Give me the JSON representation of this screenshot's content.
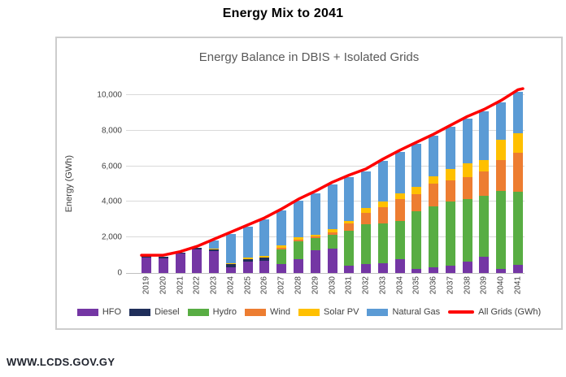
{
  "page": {
    "title": "Energy Mix to 2041",
    "footer": "WWW.LCDS.GOV.GY"
  },
  "chart_data": {
    "type": "bar",
    "subtype": "stacked-columns-with-line-overlay",
    "title": "Energy Balance in DBIS + Isolated Grids",
    "xlabel": "",
    "ylabel": "Energy (GWh)",
    "ylim": [
      0,
      10000
    ],
    "ytick_interval": 2000,
    "ytick_labels": [
      "0",
      "2,000",
      "4,000",
      "6,000",
      "8,000",
      "10,000"
    ],
    "grid": true,
    "legend_position": "bottom",
    "categories": [
      "2019",
      "2020",
      "2021",
      "2022",
      "2023",
      "2024",
      "2025",
      "2026",
      "2027",
      "2028",
      "2029",
      "2030",
      "2031",
      "2032",
      "2033",
      "2034",
      "2035",
      "2036",
      "2037",
      "2038",
      "2039",
      "2040",
      "2041"
    ],
    "series": [
      {
        "name": "HFO",
        "color": "#7436A4",
        "values": [
          850,
          840,
          1080,
          1320,
          1250,
          330,
          650,
          700,
          490,
          790,
          1270,
          1350,
          410,
          490,
          560,
          790,
          210,
          330,
          410,
          640,
          900,
          230,
          470
        ]
      },
      {
        "name": "Diesel",
        "color": "#1F2E5A",
        "values": [
          100,
          60,
          80,
          110,
          60,
          160,
          150,
          180,
          0,
          0,
          0,
          0,
          0,
          0,
          0,
          0,
          0,
          0,
          0,
          0,
          0,
          0,
          0
        ]
      },
      {
        "name": "Hydro",
        "color": "#58AD43",
        "values": [
          0,
          0,
          0,
          0,
          0,
          0,
          0,
          0,
          830,
          990,
          700,
          800,
          1980,
          2250,
          2240,
          2130,
          3280,
          3420,
          3600,
          3500,
          3460,
          4370,
          4120
        ]
      },
      {
        "name": "Wind",
        "color": "#ED7D31",
        "values": [
          0,
          0,
          0,
          0,
          0,
          0,
          0,
          0,
          100,
          110,
          100,
          150,
          380,
          640,
          880,
          1220,
          940,
          1290,
          1220,
          1250,
          1370,
          1740,
          2160
        ]
      },
      {
        "name": "Solar PV",
        "color": "#FFC000",
        "values": [
          0,
          0,
          0,
          0,
          70,
          80,
          80,
          80,
          120,
          120,
          100,
          150,
          150,
          270,
          330,
          330,
          430,
          380,
          610,
          760,
          610,
          1140,
          1110
        ]
      },
      {
        "name": "Natural Gas",
        "color": "#5B9BD5",
        "values": [
          0,
          0,
          0,
          0,
          450,
          1630,
          1720,
          2040,
          1960,
          2040,
          2330,
          2550,
          2480,
          2080,
          2290,
          2330,
          2390,
          2280,
          2360,
          2550,
          2760,
          2120,
          2340
        ]
      }
    ],
    "line_series": {
      "name": "All Grids (GWh)",
      "color": "#FE0000",
      "values": [
        1000,
        1000,
        1200,
        1500,
        1900,
        2300,
        2700,
        3100,
        3600,
        4150,
        4600,
        5100,
        5500,
        5850,
        6400,
        6900,
        7350,
        7800,
        8300,
        8800,
        9200,
        9700,
        10300
      ]
    }
  }
}
